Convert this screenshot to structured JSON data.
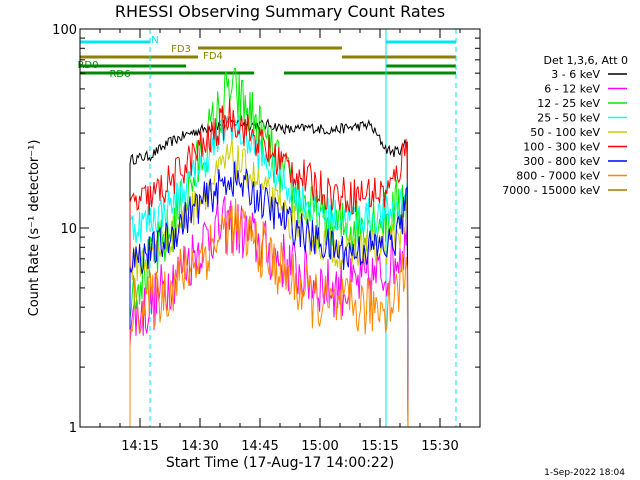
{
  "chart_data": {
    "type": "line",
    "title": "RHESSI Observing Summary Count Rates",
    "xlabel": "Start Time (17-Aug-17 14:00:22)",
    "ylabel": "Count Rate (s⁻¹ detector⁻¹)",
    "yscale": "log",
    "xlim_minutes": [
      0,
      100
    ],
    "ylim": [
      1,
      100
    ],
    "x_ticks": [
      {
        "label": "14:15",
        "minutes": 15
      },
      {
        "label": "14:30",
        "minutes": 30
      },
      {
        "label": "14:45",
        "minutes": 45
      },
      {
        "label": "15:00",
        "minutes": 60
      },
      {
        "label": "15:15",
        "minutes": 75
      },
      {
        "label": "15:30",
        "minutes": 90
      }
    ],
    "y_ticks": [
      {
        "label": "1",
        "value": 1
      },
      {
        "label": "10",
        "value": 10
      },
      {
        "label": "100",
        "value": 100
      }
    ],
    "legend_header": "Det 1,3,6, Att 0",
    "legend_placement": "right",
    "segment_line_times": [
      0,
      17.5,
      76.5,
      94
    ],
    "flags": [
      {
        "label": "N",
        "color": "#00e5ee",
        "segments": [
          [
            0,
            17.5
          ],
          [
            76.5,
            94
          ]
        ]
      },
      {
        "label": "FD3",
        "color": "#8b8000",
        "segments": [
          [
            29.5,
            65.5
          ]
        ]
      },
      {
        "label": "FD4",
        "color": "#8b8000",
        "segments": [
          [
            0,
            29.5
          ],
          [
            65.5,
            94
          ]
        ]
      },
      {
        "label": "RD0",
        "color": "#008800",
        "segments": [
          [
            0,
            26.5
          ],
          [
            76.5,
            94
          ]
        ]
      },
      {
        "label": "RD6",
        "color": "#008800",
        "segments": [
          [
            0,
            43.5
          ],
          [
            51,
            76.5
          ],
          [
            76.5,
            94
          ]
        ]
      }
    ],
    "series": [
      {
        "name": "3 - 6 keV",
        "color": "#000000",
        "values": [
          22,
          23,
          27,
          30,
          32,
          34,
          33,
          33,
          31,
          32,
          31,
          32,
          33,
          25,
          24,
          25,
          28
        ]
      },
      {
        "name": "6 - 12 keV",
        "color": "#ff00ff",
        "values": [
          3.5,
          4,
          5.5,
          7,
          9.5,
          10.5,
          9,
          7.5,
          6.5,
          5.5,
          5,
          5,
          5.5,
          6,
          7,
          8,
          9
        ]
      },
      {
        "name": "12 - 25 keV",
        "color": "#00ee00",
        "values": [
          5,
          6.5,
          9.5,
          16,
          30,
          50,
          38,
          24,
          16,
          12,
          10,
          10,
          11,
          11,
          12,
          14,
          16
        ]
      },
      {
        "name": "25 - 50 keV",
        "color": "#00ffff",
        "values": [
          10,
          11,
          13,
          17,
          24,
          34,
          27,
          20,
          16,
          13,
          11.5,
          11,
          11.5,
          11.5,
          12.5,
          14,
          16
        ]
      },
      {
        "name": "50 - 100 keV",
        "color": "#cccc00",
        "values": [
          6.5,
          7,
          9,
          12,
          16,
          23,
          19,
          14,
          11,
          9,
          8,
          7.5,
          8,
          8,
          9,
          10,
          12
        ]
      },
      {
        "name": "100 - 300 keV",
        "color": "#ff0000",
        "values": [
          13,
          14,
          17,
          22,
          28,
          37,
          30,
          24,
          20,
          17,
          15,
          14.5,
          15,
          15,
          17,
          22,
          28
        ]
      },
      {
        "name": "300 - 800 keV",
        "color": "#0000ff",
        "values": [
          7,
          7.5,
          9,
          12,
          14.5,
          18,
          15.5,
          12.5,
          10.5,
          9,
          8,
          7.5,
          8,
          8,
          8.5,
          11,
          14
        ]
      },
      {
        "name": "800 - 7000 keV",
        "color": "#ff8800",
        "values": [
          4,
          4.2,
          5,
          6.5,
          8,
          10.5,
          9,
          7,
          5.5,
          4.5,
          4,
          4,
          4,
          4.2,
          4.5,
          5.5,
          7
        ]
      },
      {
        "name": "7000 - 15000 keV",
        "color": "#aa7700",
        "values": []
      }
    ],
    "series_x_minutes": [
      12.5,
      17.5,
      22.5,
      27.5,
      32.5,
      37.5,
      42.5,
      47.5,
      52.5,
      57.5,
      62.5,
      67.5,
      72.5,
      76.5,
      78.5,
      80.5,
      82
    ]
  },
  "footer": {
    "date_stamp": "1-Sep-2022 18:04"
  }
}
